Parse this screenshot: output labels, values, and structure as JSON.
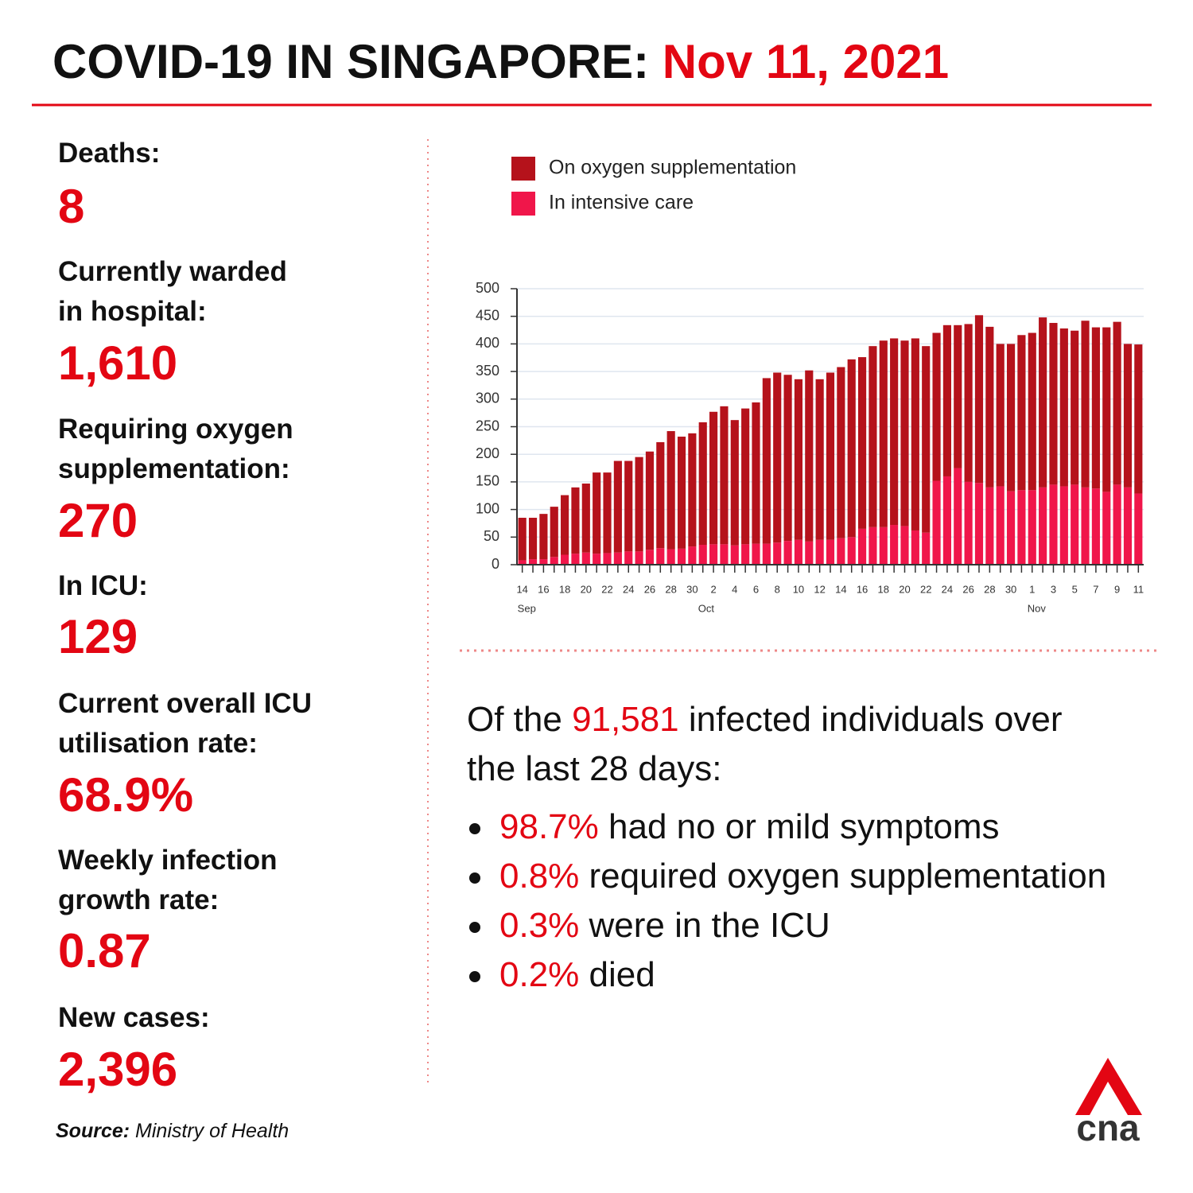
{
  "header": {
    "title": "COVID-19 IN SINGAPORE:",
    "date": "Nov 11, 2021"
  },
  "stats": [
    {
      "label": [
        "Deaths:"
      ],
      "value": "8"
    },
    {
      "label": [
        "Currently warded",
        "in hospital:"
      ],
      "value": "1,610"
    },
    {
      "label": [
        "Requiring oxygen",
        "supplementation:"
      ],
      "value": "270"
    },
    {
      "label": [
        "In ICU:"
      ],
      "value": "129"
    },
    {
      "label": [
        "Current overall ICU",
        "utilisation rate:"
      ],
      "value": "68.9%"
    },
    {
      "label": [
        "Weekly infection",
        "growth rate:"
      ],
      "value": "0.87"
    },
    {
      "label": [
        "New cases:"
      ],
      "value": "2,396"
    }
  ],
  "source": {
    "label": "Source:",
    "text": "Ministry of Health"
  },
  "summary": {
    "before": "Of the",
    "highlight": "91,581",
    "after": [
      "infected individuals over",
      "the last 28 days:"
    ],
    "bullets": [
      {
        "value": "98.7%",
        "text": "had no or mild symptoms"
      },
      {
        "value": "0.8%",
        "text": "required oxygen supplementation"
      },
      {
        "value": "0.3%",
        "text": "were in the ICU"
      },
      {
        "value": "0.2%",
        "text": "died"
      }
    ]
  },
  "logo": "cna",
  "chart_data": {
    "type": "stacked_bar",
    "categories": [
      "14",
      null,
      "16",
      null,
      "18",
      null,
      "20",
      null,
      "22",
      null,
      "24",
      null,
      "26",
      null,
      "28",
      null,
      "30",
      null,
      "2",
      null,
      "4",
      null,
      "6",
      null,
      "8",
      null,
      "10",
      null,
      "12",
      null,
      "14",
      null,
      "16",
      null,
      "18",
      null,
      "20",
      null,
      "22",
      null,
      "24",
      null,
      "26",
      null,
      "28",
      null,
      "30",
      null,
      "1",
      null,
      "3",
      null,
      "5",
      null,
      "7",
      null,
      "9",
      null,
      "11"
    ],
    "month_labels": [
      "Sep",
      "Oct",
      "Nov"
    ],
    "series": [
      {
        "name": "In intensive care",
        "color": "#f0164a",
        "values": [
          8,
          10,
          10,
          14,
          18,
          20,
          22,
          20,
          21,
          22,
          24,
          24,
          27,
          30,
          28,
          29,
          33,
          36,
          37,
          37,
          35,
          37,
          38,
          38,
          40,
          43,
          45,
          42,
          45,
          45,
          48,
          50,
          65,
          68,
          68,
          72,
          70,
          62,
          58,
          152,
          160,
          175,
          150,
          148,
          140,
          142,
          133,
          135,
          135,
          140,
          145,
          142,
          145,
          140,
          138,
          132,
          145,
          140,
          129
        ]
      },
      {
        "name": "On oxygen supplementation",
        "color": "#b5121b",
        "values": [
          77,
          75,
          82,
          91,
          108,
          120,
          125,
          147,
          146,
          166,
          164,
          171,
          178,
          192,
          214,
          203,
          205,
          222,
          240,
          250,
          227,
          246,
          256,
          300,
          308,
          301,
          291,
          310,
          291,
          303,
          310,
          322,
          311,
          328,
          338,
          338,
          336,
          348,
          338,
          268,
          274,
          259,
          286,
          304,
          291,
          258,
          267,
          281,
          285,
          308,
          293,
          286,
          279,
          302,
          292,
          298,
          295,
          260,
          270
        ]
      }
    ],
    "legend_order": [
      1,
      0
    ],
    "ylim": [
      0,
      500
    ],
    "yticks": [
      0,
      50,
      100,
      150,
      200,
      250,
      300,
      350,
      400,
      450,
      500
    ],
    "grid": true
  }
}
